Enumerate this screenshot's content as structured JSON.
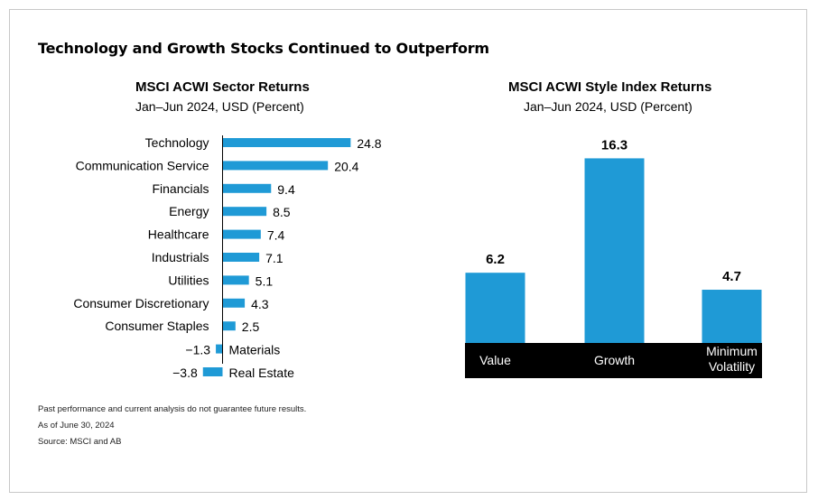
{
  "main_title": "Technology and Growth Stocks Continued to Outperform",
  "colors": {
    "bar": "#1f9ad6",
    "axis_band": "#000000",
    "band_text": "#ffffff"
  },
  "chart_data": [
    {
      "type": "bar",
      "orientation": "horizontal",
      "title": "MSCI ACWI Sector Returns",
      "subtitle": "Jan–Jun 2024, USD (Percent)",
      "categories": [
        "Technology",
        "Communication Service",
        "Financials",
        "Energy",
        "Healthcare",
        "Industrials",
        "Utilities",
        "Consumer Discretionary",
        "Consumer Staples",
        "Materials",
        "Real Estate"
      ],
      "values": [
        24.8,
        20.4,
        9.4,
        8.5,
        7.4,
        7.1,
        5.1,
        4.3,
        2.5,
        -1.3,
        -3.8
      ],
      "value_labels": [
        "24.8",
        "20.4",
        "9.4",
        "8.5",
        "7.4",
        "7.1",
        "5.1",
        "4.3",
        "2.5",
        "−1.3",
        "−3.8"
      ]
    },
    {
      "type": "bar",
      "orientation": "vertical",
      "title": "MSCI ACWI Style Index Returns",
      "subtitle": "Jan–Jun 2024, USD (Percent)",
      "categories": [
        "Value",
        "Growth",
        "Minimum Volatility"
      ],
      "category_lines": [
        [
          "Value"
        ],
        [
          "Growth"
        ],
        [
          "Minimum",
          "Volatility"
        ]
      ],
      "values": [
        6.2,
        16.3,
        4.7
      ],
      "value_labels": [
        "6.2",
        "16.3",
        "4.7"
      ]
    }
  ],
  "footnotes": [
    "Past performance and current analysis do not guarantee future results.",
    "As of June 30, 2024",
    "Source: MSCI and AB"
  ]
}
